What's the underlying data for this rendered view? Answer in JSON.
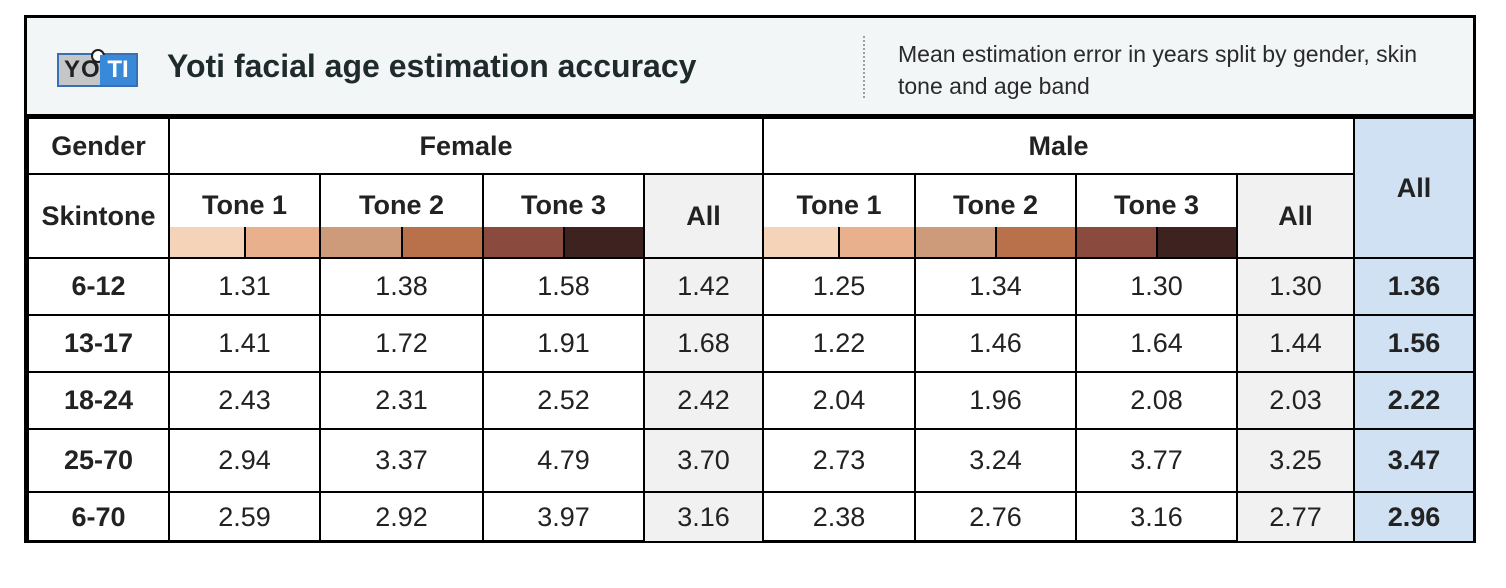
{
  "header": {
    "logo_text_left": "YO",
    "logo_text_right": "TI",
    "title": "Yoti facial age estimation accuracy",
    "subtitle": "Mean estimation error in years split by gender, skin tone and age band"
  },
  "table": {
    "gender_label": "Gender",
    "skintone_label": "Skintone",
    "groups": [
      "Female",
      "Male"
    ],
    "tone_labels": [
      "Tone 1",
      "Tone 2",
      "Tone 3"
    ],
    "all_label": "All",
    "grand_all_label": "All",
    "swatch_colors": [
      [
        "#f5d3b8",
        "#e9b08e"
      ],
      [
        "#cd9b79",
        "#b9714c"
      ],
      [
        "#8a4a3d",
        "#3e221f"
      ]
    ],
    "header_bg": "#f3f6f7",
    "grand_col_bg": "#cfe1f2",
    "all_col_bg": "#f1f1f1"
  },
  "chart_data": {
    "type": "table",
    "title": "Yoti facial age estimation accuracy",
    "subtitle": "Mean estimation error in years split by gender, skin tone and age band",
    "columns": [
      "Female Tone 1",
      "Female Tone 2",
      "Female Tone 3",
      "Female All",
      "Male Tone 1",
      "Male Tone 2",
      "Male Tone 3",
      "Male All",
      "All"
    ],
    "rows": [
      {
        "label": "6-12",
        "values": [
          "1.31",
          "1.38",
          "1.58",
          "1.42",
          "1.25",
          "1.34",
          "1.30",
          "1.30",
          "1.36"
        ]
      },
      {
        "label": "13-17",
        "values": [
          "1.41",
          "1.72",
          "1.91",
          "1.68",
          "1.22",
          "1.46",
          "1.64",
          "1.44",
          "1.56"
        ]
      },
      {
        "label": "18-24",
        "values": [
          "2.43",
          "2.31",
          "2.52",
          "2.42",
          "2.04",
          "1.96",
          "2.08",
          "2.03",
          "2.22"
        ]
      },
      {
        "label": "25-70",
        "values": [
          "2.94",
          "3.37",
          "4.79",
          "3.70",
          "2.73",
          "3.24",
          "3.77",
          "3.25",
          "3.47"
        ]
      },
      {
        "label": "6-70",
        "values": [
          "2.59",
          "2.92",
          "3.97",
          "3.16",
          "2.38",
          "2.76",
          "3.16",
          "2.77",
          "2.96"
        ]
      }
    ]
  }
}
